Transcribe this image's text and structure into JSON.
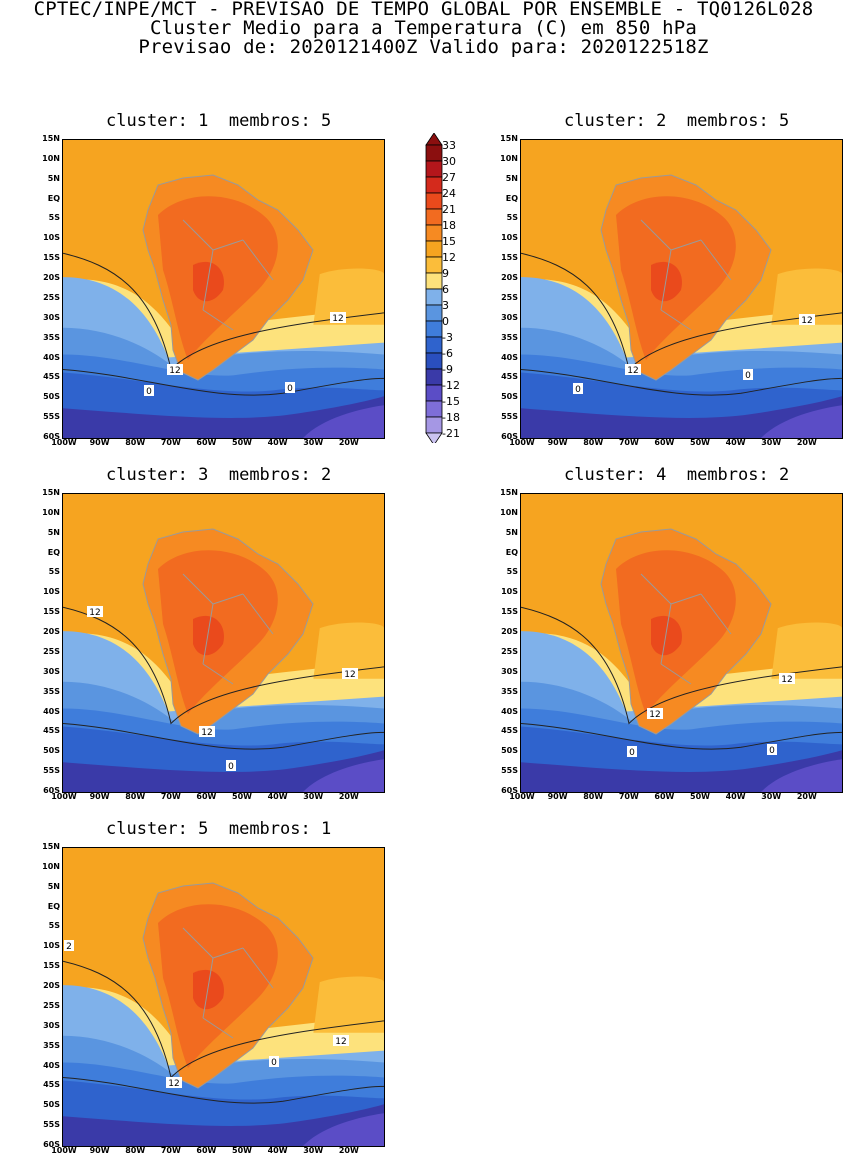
{
  "title": {
    "line1": "CPTEC/INPE/MCT - PREVISAO DE TEMPO GLOBAL POR ENSEMBLE - TQ0126L028",
    "line2": "Cluster Medio para a Temperatura (C) em 850 hPa",
    "line3": "Previsao de: 2020121400Z   Valido para: 2020122518Z"
  },
  "axes": {
    "lat_ticks": [
      "15N",
      "10N",
      "5N",
      "EQ",
      "5S",
      "10S",
      "15S",
      "20S",
      "25S",
      "30S",
      "35S",
      "40S",
      "45S",
      "50S",
      "55S",
      "60S"
    ],
    "lon_ticks": [
      "100W",
      "90W",
      "80W",
      "70W",
      "60W",
      "50W",
      "40W",
      "30W",
      "20W"
    ]
  },
  "colorbar": {
    "levels": [
      "33",
      "30",
      "27",
      "24",
      "21",
      "18",
      "15",
      "12",
      "9",
      "6",
      "3",
      "0",
      "-3",
      "-6",
      "-9",
      "-12",
      "-15",
      "-18",
      "-21"
    ],
    "colors": [
      "#8b0f0f",
      "#b4161b",
      "#d42a1c",
      "#ea4a1c",
      "#f26b20",
      "#f68a22",
      "#f6a420",
      "#fbbd3a",
      "#fde27c",
      "#7fb1ea",
      "#5a95e0",
      "#3f7ddb",
      "#2f63cd",
      "#2a4fbe",
      "#3a3aa8",
      "#5b4dc6",
      "#7e6ed8",
      "#a597e4",
      "#cbc3f0"
    ]
  },
  "panels": [
    {
      "cluster_label": "cluster: 1",
      "members_label": "membros: 5",
      "contour_labels": [
        "12",
        "12",
        "0",
        "0"
      ]
    },
    {
      "cluster_label": "cluster: 2",
      "members_label": "membros: 5",
      "contour_labels": [
        "12",
        "12",
        "0",
        "0"
      ]
    },
    {
      "cluster_label": "cluster: 3",
      "members_label": "membros: 2",
      "contour_labels": [
        "12",
        "12",
        "12",
        "0"
      ]
    },
    {
      "cluster_label": "cluster: 4",
      "members_label": "membros: 2",
      "contour_labels": [
        "12",
        "12",
        "0",
        "0"
      ]
    },
    {
      "cluster_label": "cluster: 5",
      "members_label": "membros: 1",
      "contour_labels": [
        "2",
        "12",
        "12",
        "0"
      ]
    }
  ]
}
